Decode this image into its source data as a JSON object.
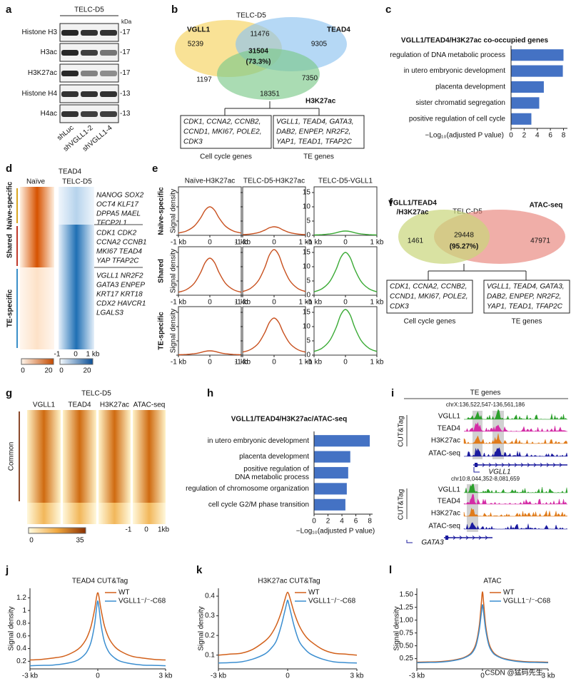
{
  "panel_labels": [
    "a",
    "b",
    "c",
    "d",
    "e",
    "f",
    "g",
    "h",
    "i",
    "j",
    "k",
    "l"
  ],
  "blot": {
    "title": "TELC-D5",
    "unit": "kDa",
    "rows": [
      {
        "label": "Histone H3",
        "kda": "-17"
      },
      {
        "label": "H3ac",
        "kda": "-17"
      },
      {
        "label": "H3K27ac",
        "kda": "-17"
      },
      {
        "label": "Histone H4",
        "kda": "-13"
      },
      {
        "label": "H4ac",
        "kda": "-13"
      }
    ],
    "lanes": [
      "shLuc",
      "shVGLL1-2",
      "shVGLL1-4"
    ]
  },
  "venn_b": {
    "title": "TELC-D5",
    "sets": [
      "VGLL1",
      "TEAD4",
      "H3K27ac"
    ],
    "vgll1_only": 5239,
    "vgll1_tead4": 11476,
    "tead4_only": 9305,
    "center": 31504,
    "center_pct": "(73.3%)",
    "vgll1_h3k27ac": 1197,
    "tead4_h3k27ac": 7350,
    "h3k27ac_only": 18351,
    "boxes": [
      {
        "genes": [
          "CDK1, CCNA2, CCNB2,",
          "CCND1, MKI67, POLE2,",
          "CDK3"
        ],
        "caption": "Cell cycle genes"
      },
      {
        "genes": [
          "VGLL1, TEAD4, GATA3,",
          "DAB2, ENPEP, NR2F2,",
          "YAP1, TEAD1, TFAP2C"
        ],
        "caption": "TE genes"
      }
    ]
  },
  "heatmap_d": {
    "title": "TEAD4",
    "columns": [
      "Naïve",
      "TELC-D5"
    ],
    "groups": [
      {
        "label": "Naïve-specific",
        "color": "#d9a520",
        "genes": [
          "NANOG SOX2",
          "OCT4 KLF17",
          "DPPA5 MAEL",
          "TFCP2L1"
        ]
      },
      {
        "label": "Shared",
        "color": "#c0392b",
        "genes": [
          "CDK1 CDK2",
          "CCNA2 CCNB1",
          "MKI67 TEAD4",
          "YAP TFAP2C"
        ]
      },
      {
        "label": "TE-specific",
        "color": "#3a8fc8",
        "genes": [
          "VGLL1 NR2F2",
          "GATA3 ENPEP",
          "KRT17 KRT18",
          "CDX2 HAVCR1",
          "LGALS3"
        ]
      }
    ],
    "axis": [
      "-1",
      "0",
      "1 kb"
    ],
    "colorbars": [
      [
        "0",
        "20"
      ],
      [
        "0",
        "20"
      ]
    ]
  },
  "venn_f": {
    "title": "TELC-D5",
    "set_a": [
      "VGLL1/TEAD4",
      "/H3K27ac"
    ],
    "set_b": "ATAC-seq",
    "left": 1461,
    "center": 29448,
    "center_pct": "(95.27%)",
    "right": 47971,
    "boxes": [
      {
        "genes": [
          "CDK1, CCNA2, CCNB2,",
          "CCND1, MKI67, POLE2,",
          "CDK3"
        ],
        "caption": "Cell cycle genes"
      },
      {
        "genes": [
          "VGLL1, TEAD4, GATA3,",
          "DAB2, ENPEP, NR2F2,",
          "YAP1, TEAD1, TFAP2C"
        ],
        "caption": "TE genes"
      }
    ]
  },
  "heatmap_g": {
    "title": "TELC-D5",
    "columns": [
      "VGLL1",
      "TEAD4",
      "H3K27ac",
      "ATAC-seq"
    ],
    "group": "Common",
    "axis": [
      "-1",
      "0",
      "1kb"
    ],
    "colorbar": [
      "0",
      "35"
    ]
  },
  "tracks_i": {
    "title": "TE genes",
    "loci": [
      {
        "coord": "chrX:136,522,547-136,561,186",
        "assay": "CUT&Tag",
        "tracks": [
          "VGLL1",
          "TEAD4",
          "H3K27ac",
          "ATAC-seq"
        ],
        "gene": "VGLL1"
      },
      {
        "coord": "chr10:8,044,352-8,081,659",
        "assay": "CUT&Tag",
        "tracks": [
          "VGLL1",
          "TEAD4",
          "H3K27ac",
          "ATAC-seq"
        ],
        "gene": "GATA3"
      }
    ]
  },
  "watermark": "CSDN @猛码先生",
  "chart_data": [
    {
      "type": "barh",
      "title": "VGLL1/TEAD4/H3K27ac co-occupied genes",
      "categories": [
        "regulation of DNA metabolic process",
        "in utero embryonic development",
        "placenta development",
        "sister chromatid segregation",
        "positive regulation of cell cycle"
      ],
      "values": [
        8.0,
        7.9,
        5.0,
        4.3,
        3.1
      ],
      "color": "#4472c4",
      "xlim": [
        0,
        8.6
      ],
      "xticks": [
        0,
        2,
        4,
        6,
        8
      ],
      "xlabel": "−Log₁₀(adjusted P value)"
    },
    {
      "type": "barh",
      "title": "VGLL1/TEAD4/H3K27ac/ATAC-seq",
      "categories": [
        "in utero embryonic development",
        "placenta development",
        "positive regulation of DNA metabolic process",
        "regulation of chromosome organization",
        "cell cycle G2/M phase transition"
      ],
      "values": [
        8.0,
        5.2,
        4.9,
        4.7,
        4.5
      ],
      "color": "#4472c4",
      "xlim": [
        0,
        8.4
      ],
      "xticks": [
        0,
        2,
        4,
        6,
        8
      ],
      "xlabel": "−Log₁₀(adjusted P value)"
    },
    {
      "type": "line_grid",
      "columns": [
        "Naïve-H3K27ac",
        "TELC-D5-H3K27ac",
        "TELC-D5-VGLL1"
      ],
      "rows": [
        "Naïve-specific",
        "Shared",
        "TE-specific"
      ],
      "row_colors": [
        "#d9a520",
        "#c0392b",
        "#3a8fc8"
      ],
      "ylabel": "Signal density",
      "x": [
        -1,
        -0.75,
        -0.5,
        -0.3,
        -0.15,
        0,
        0.15,
        0.3,
        0.5,
        0.75,
        1
      ],
      "xlim": [
        -1,
        1
      ],
      "xticks": [
        {
          "value": -1,
          "label": "-1 kb"
        },
        0,
        {
          "value": 1,
          "label": "1 kb"
        }
      ],
      "ylim": [
        0,
        17
      ],
      "yticks": [
        0,
        5,
        10,
        15
      ],
      "panels": [
        [
          {
            "color": "#c8501e",
            "values": [
              0.8,
              1.5,
              3.2,
              6,
              8.8,
              10,
              8.8,
              6,
              3.2,
              1.5,
              0.8
            ]
          },
          {
            "color": "#c8501e",
            "values": [
              0.24,
              0.45,
              0.96,
              1.8,
              2.64,
              3,
              2.64,
              1.8,
              0.96,
              0.45,
              0.24
            ]
          },
          {
            "color": "#3aaa35",
            "values": [
              0.12,
              0.23,
              0.48,
              0.9,
              1.32,
              1.5,
              1.32,
              0.9,
              0.48,
              0.23,
              0.12
            ]
          }
        ],
        [
          {
            "color": "#c8501e",
            "values": [
              1.04,
              1.95,
              4.16,
              7.8,
              11.44,
              13,
              11.44,
              7.8,
              4.16,
              1.95,
              1.04
            ]
          },
          {
            "color": "#c8501e",
            "values": [
              1.28,
              2.4,
              5.12,
              9.6,
              14.08,
              16,
              14.08,
              9.6,
              5.12,
              2.4,
              1.28
            ]
          },
          {
            "color": "#3aaa35",
            "values": [
              1.2,
              2.25,
              4.8,
              9,
              13.2,
              15,
              13.2,
              9,
              4.8,
              2.25,
              1.2
            ]
          }
        ],
        [
          {
            "color": "#c8501e",
            "values": [
              0.12,
              0.23,
              0.48,
              0.9,
              1.32,
              1.5,
              1.32,
              0.9,
              0.48,
              0.23,
              0.12
            ]
          },
          {
            "color": "#c8501e",
            "values": [
              1.04,
              1.95,
              4.16,
              7.8,
              11.44,
              13,
              11.44,
              7.8,
              4.16,
              1.95,
              1.04
            ]
          },
          {
            "color": "#3aaa35",
            "values": [
              1.28,
              2.4,
              5.12,
              9.6,
              14.08,
              16,
              14.08,
              9.6,
              5.12,
              2.4,
              1.28
            ]
          }
        ]
      ]
    },
    {
      "type": "line",
      "title": "TEAD4 CUT&Tag",
      "ylabel": "Signal density",
      "x": [
        -3,
        -2.5,
        -2,
        -1.5,
        -1,
        -0.75,
        -0.5,
        -0.3,
        -0.15,
        -0.05,
        0,
        0.05,
        0.15,
        0.3,
        0.5,
        0.75,
        1,
        1.5,
        2,
        2.5,
        3
      ],
      "xlim": [
        -3,
        3
      ],
      "xticks": [
        {
          "value": -3,
          "label": "-3 kb"
        },
        0,
        {
          "value": 3,
          "label": "3 kb"
        }
      ],
      "ylim": [
        0.08,
        1.35
      ],
      "yticks": [
        0.2,
        0.4,
        0.6,
        0.8,
        1,
        1.2
      ],
      "series": [
        {
          "name": "WT",
          "color": "#d2601a",
          "values": [
            0.22,
            0.23,
            0.25,
            0.28,
            0.36,
            0.43,
            0.56,
            0.75,
            1.0,
            1.22,
            1.28,
            1.22,
            1.0,
            0.75,
            0.56,
            0.43,
            0.36,
            0.28,
            0.25,
            0.23,
            0.22
          ]
        },
        {
          "name": "VGLL1⁻/⁻-C68",
          "color": "#3b8ed0",
          "values": [
            0.13,
            0.135,
            0.14,
            0.16,
            0.2,
            0.25,
            0.34,
            0.5,
            0.76,
            1.05,
            1.15,
            1.05,
            0.76,
            0.5,
            0.34,
            0.25,
            0.2,
            0.16,
            0.14,
            0.135,
            0.13
          ]
        }
      ]
    },
    {
      "type": "line",
      "title": "H3K27ac CUT&Tag",
      "ylabel": "Signal density",
      "x": [
        -3,
        -2.5,
        -2,
        -1.5,
        -1,
        -0.75,
        -0.5,
        -0.3,
        -0.15,
        -0.05,
        0,
        0.05,
        0.15,
        0.3,
        0.5,
        0.75,
        1,
        1.5,
        2,
        2.5,
        3
      ],
      "xlim": [
        -3,
        3
      ],
      "xticks": [
        {
          "value": -3,
          "label": "-3 kb"
        },
        0,
        {
          "value": 3,
          "label": "3 kb"
        }
      ],
      "ylim": [
        0.03,
        0.44
      ],
      "yticks": [
        0.1,
        0.2,
        0.3,
        0.4
      ],
      "series": [
        {
          "name": "WT",
          "color": "#d2601a",
          "values": [
            0.1,
            0.105,
            0.11,
            0.13,
            0.17,
            0.2,
            0.25,
            0.31,
            0.37,
            0.41,
            0.42,
            0.41,
            0.37,
            0.31,
            0.25,
            0.2,
            0.17,
            0.13,
            0.11,
            0.105,
            0.1
          ]
        },
        {
          "name": "VGLL1⁻/⁻-C68",
          "color": "#3b8ed0",
          "values": [
            0.06,
            0.062,
            0.066,
            0.08,
            0.105,
            0.13,
            0.17,
            0.24,
            0.31,
            0.36,
            0.38,
            0.36,
            0.31,
            0.24,
            0.17,
            0.13,
            0.105,
            0.08,
            0.066,
            0.062,
            0.06
          ]
        }
      ]
    },
    {
      "type": "line",
      "title": "ATAC",
      "ylabel": "Signal density",
      "x": [
        -3,
        -2.5,
        -2,
        -1.5,
        -1,
        -0.75,
        -0.5,
        -0.3,
        -0.15,
        -0.05,
        0,
        0.05,
        0.15,
        0.3,
        0.5,
        0.75,
        1,
        1.5,
        2,
        2.5,
        3
      ],
      "xlim": [
        -3,
        3
      ],
      "xticks": [
        {
          "value": -3,
          "label": "-3 kb"
        },
        0,
        {
          "value": 3,
          "label": "3 kb"
        }
      ],
      "ylim": [
        0.05,
        1.62
      ],
      "yticks": [
        {
          "value": 0.25,
          "label": "0.25"
        },
        {
          "value": 0.5,
          "label": "0.50"
        },
        {
          "value": 0.75,
          "label": "0.75"
        },
        {
          "value": 1,
          "label": "1.00"
        },
        {
          "value": 1.25,
          "label": "1.25"
        },
        {
          "value": 1.5,
          "label": "1.50"
        }
      ],
      "series": [
        {
          "name": "WT",
          "color": "#d2601a",
          "values": [
            0.18,
            0.185,
            0.19,
            0.21,
            0.25,
            0.29,
            0.37,
            0.54,
            0.88,
            1.35,
            1.55,
            1.35,
            0.88,
            0.54,
            0.37,
            0.29,
            0.25,
            0.21,
            0.19,
            0.185,
            0.18
          ]
        },
        {
          "name": "VGLL1⁻/⁻-C68",
          "color": "#3b8ed0",
          "values": [
            0.17,
            0.175,
            0.18,
            0.2,
            0.24,
            0.28,
            0.35,
            0.5,
            0.8,
            1.15,
            1.3,
            1.15,
            0.8,
            0.5,
            0.35,
            0.28,
            0.24,
            0.2,
            0.18,
            0.175,
            0.17
          ]
        }
      ]
    }
  ]
}
